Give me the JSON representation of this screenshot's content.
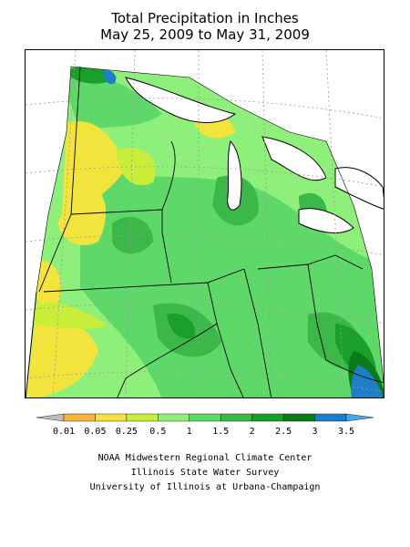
{
  "title": {
    "line1": "Total Precipitation in Inches",
    "line2": "May 25, 2009 to May 31, 2009"
  },
  "legend": {
    "labels": [
      "0.01",
      "0.05",
      "0.25",
      "0.5",
      "1",
      "1.5",
      "2",
      "2.5",
      "3",
      "3.5"
    ],
    "bins": [
      {
        "color": "#bdbdbd"
      },
      {
        "color": "#f7b23c"
      },
      {
        "color": "#f2e33d"
      },
      {
        "color": "#c8ee3a"
      },
      {
        "color": "#8ef07a"
      },
      {
        "color": "#5fd86a"
      },
      {
        "color": "#3cb84a"
      },
      {
        "color": "#1aa02a"
      },
      {
        "color": "#0a7a1a"
      },
      {
        "color": "#1e7fc8"
      },
      {
        "color": "#4aa8e8"
      }
    ]
  },
  "credits": {
    "line1": "NOAA Midwestern Regional Climate Center",
    "line2": "Illinois State Water Survey",
    "line3": "University of Illinois at Urbana-Champaign"
  }
}
